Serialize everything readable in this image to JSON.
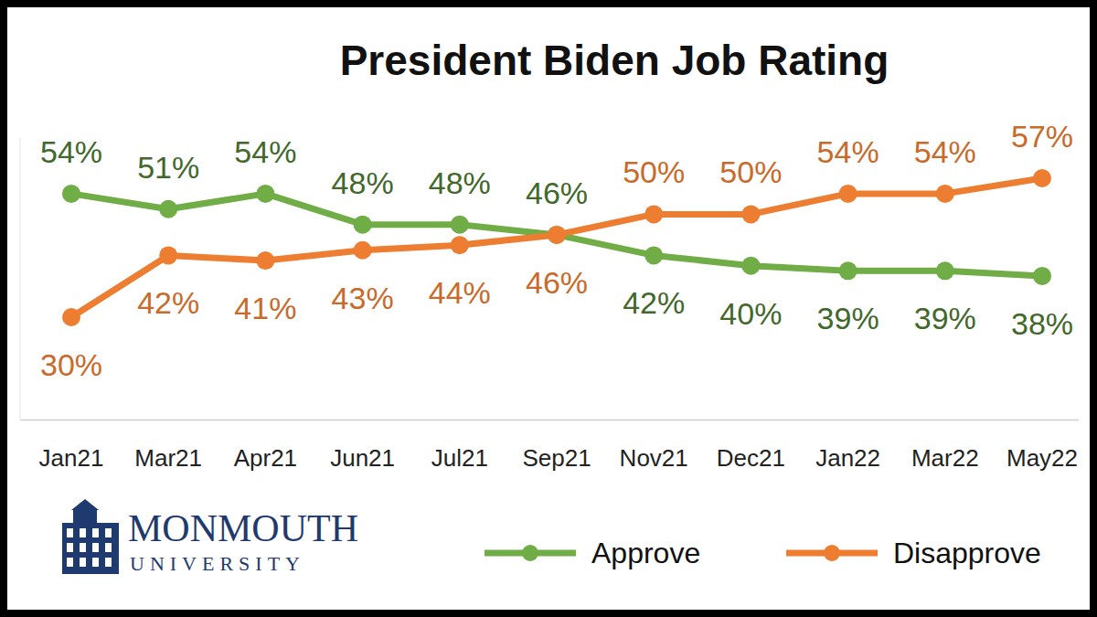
{
  "chart_data": {
    "type": "line",
    "title": "President Biden Job Rating",
    "categories": [
      "Jan21",
      "Mar21",
      "Apr21",
      "Jun21",
      "Jul21",
      "Sep21",
      "Nov21",
      "Dec21",
      "Jan22",
      "Mar22",
      "May22"
    ],
    "series": [
      {
        "name": "Approve",
        "color": "#70ad47",
        "marker": "circle",
        "line_style": "solid",
        "values": [
          54,
          51,
          54,
          48,
          48,
          46,
          42,
          40,
          39,
          39,
          38
        ],
        "value_labels": [
          "54%",
          "51%",
          "54%",
          "48%",
          "48%",
          "46%",
          "42%",
          "40%",
          "39%",
          "39%",
          "38%"
        ]
      },
      {
        "name": "Disapprove",
        "color": "#ed7d31",
        "marker": "circle",
        "line_style": "solid",
        "values": [
          30,
          42,
          41,
          43,
          44,
          46,
          50,
          50,
          54,
          54,
          57
        ],
        "value_labels": [
          "30%",
          "42%",
          "41%",
          "43%",
          "44%",
          "46%",
          "50%",
          "50%",
          "54%",
          "54%",
          "57%"
        ]
      }
    ],
    "ylim": [
      10,
      65
    ],
    "grid": false,
    "tick_labels": "x",
    "data_labels": true,
    "legend": "bottom",
    "annotations": [
      "MONMOUTH",
      "UNIVERSITY"
    ]
  }
}
